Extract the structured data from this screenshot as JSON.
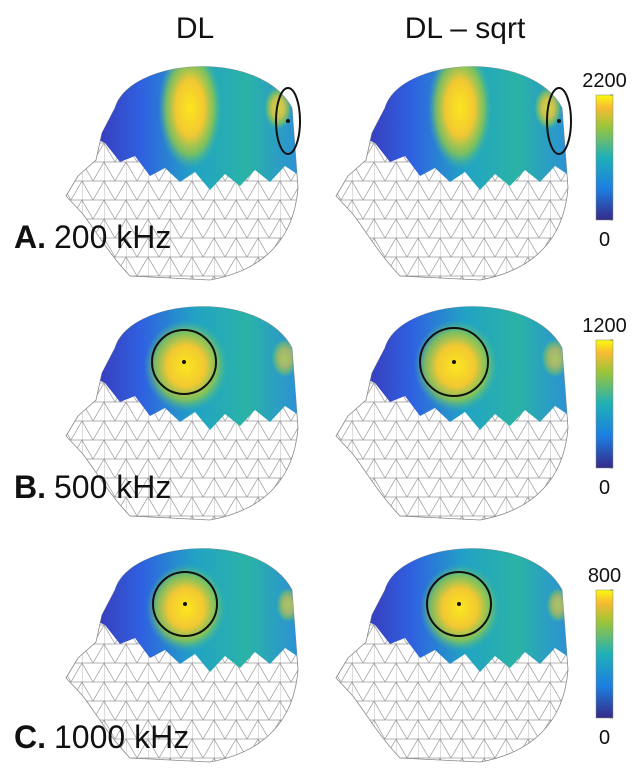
{
  "columns": [
    "DL",
    "DL – sqrt"
  ],
  "rows": [
    {
      "letter": "A.",
      "label": "200 kHz",
      "colorbar": {
        "lim": [
          0,
          2200
        ],
        "ticks": [
          0,
          2200
        ]
      }
    },
    {
      "letter": "B.",
      "label": "500 kHz",
      "colorbar": {
        "lim": [
          0,
          1200
        ],
        "ticks": [
          0,
          1200
        ]
      }
    },
    {
      "letter": "C.",
      "label": "1000 kHz",
      "colorbar": {
        "lim": [
          0,
          800
        ],
        "ticks": [
          0,
          800
        ]
      }
    }
  ]
}
